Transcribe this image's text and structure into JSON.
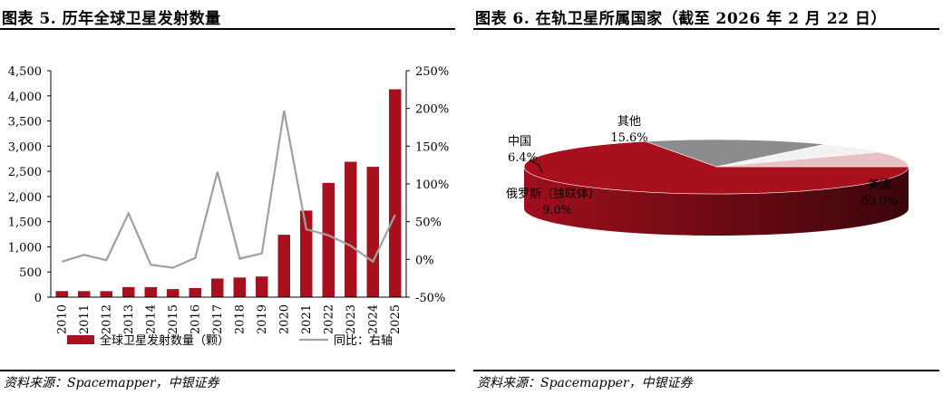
{
  "left_panel": {
    "title": "图表 5. 历年全球卫星发射数量",
    "source": "资料来源：Spacemapper，中银证券"
  },
  "right_panel": {
    "title": "图表 6. 在轨卫星所属国家（截至 2026 年 2 月 22 日）",
    "source": "资料来源：Spacemapper，中银证券"
  },
  "chart_data": [
    {
      "type": "bar",
      "title": "图表 5. 历年全球卫星发射数量",
      "categories": [
        "2010",
        "2011",
        "2012",
        "2013",
        "2014",
        "2015",
        "2016",
        "2017",
        "2018",
        "2019",
        "2020",
        "2021",
        "2022",
        "2023",
        "2024",
        "2025"
      ],
      "series": [
        {
          "name": "全球卫星发射数量（颗）",
          "type": "bar",
          "axis": "left",
          "color": "#a8101e",
          "values": [
            120,
            120,
            120,
            200,
            200,
            160,
            180,
            370,
            390,
            410,
            1240,
            1720,
            2270,
            2690,
            2590,
            4130
          ]
        },
        {
          "name": "同比：右轴",
          "type": "line",
          "axis": "right",
          "color": "#a0a0a0",
          "values": [
            -3,
            6,
            -1,
            61,
            -7,
            -11,
            2,
            116,
            1,
            8,
            197,
            40,
            32,
            18,
            -3,
            59
          ]
        }
      ],
      "y_left": {
        "min": 0,
        "max": 4500,
        "step": 500,
        "ticks": [
          "0",
          "500",
          "1,000",
          "1,500",
          "2,000",
          "2,500",
          "3,000",
          "3,500",
          "4,000",
          "4,500"
        ]
      },
      "y_right": {
        "min": -50,
        "max": 250,
        "step": 50,
        "ticks": [
          "-50%",
          "0%",
          "50%",
          "100%",
          "150%",
          "200%",
          "250%"
        ]
      },
      "legend": [
        "全球卫星发射数量（颗）",
        "同比：右轴"
      ],
      "legend_position": "bottom"
    },
    {
      "type": "pie",
      "title": "图表 6. 在轨卫星所属国家（截至 2026 年 2 月 22 日）",
      "slices": [
        {
          "name": "美国",
          "value": 69.0,
          "label": "69.0%",
          "color": "#a8101e"
        },
        {
          "name": "其他",
          "value": 15.6,
          "label": "15.6%",
          "color": "#8c8c8c"
        },
        {
          "name": "中国",
          "value": 6.4,
          "label": "6.4%",
          "color": "#f2f2f2"
        },
        {
          "name": "俄罗斯（独联体）",
          "value": 9.0,
          "label": "9.0%",
          "color": "#e8c2c2"
        }
      ]
    }
  ]
}
